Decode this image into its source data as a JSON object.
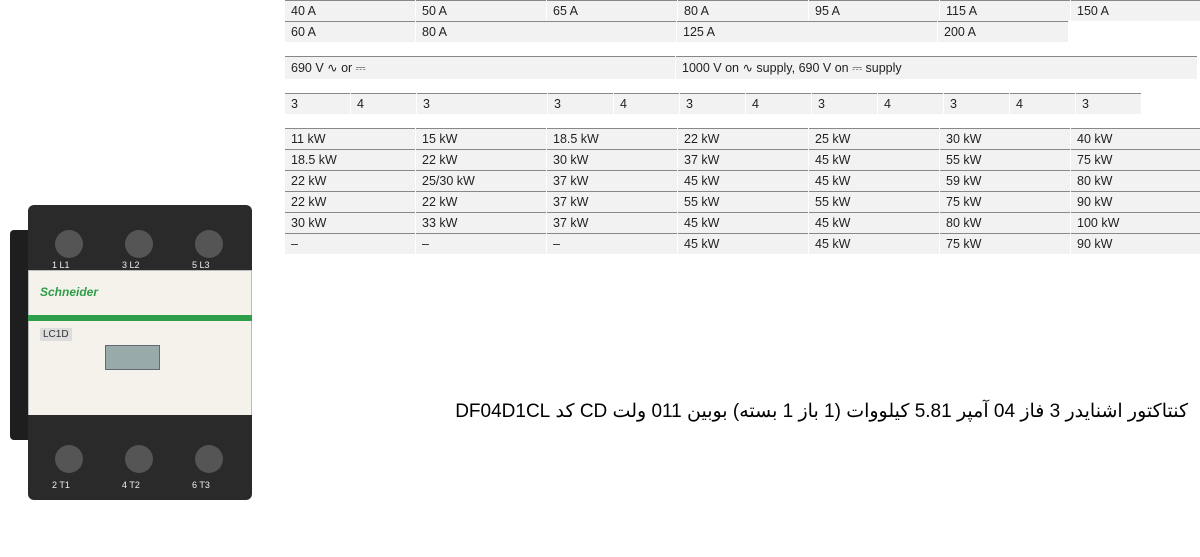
{
  "table": {
    "bg": "#f2f2f2",
    "border": "#888888",
    "text_color": "#222222",
    "fontsize": 12.5,
    "row1": [
      "40 A",
      "50 A",
      "65 A",
      "80 A",
      "95 A",
      "115 A",
      "150 A"
    ],
    "row2": [
      "60 A",
      "80 A",
      "125 A",
      "200 A"
    ],
    "row3_left": "690 V ∿ or ⎓",
    "row3_right": "1000 V on ∿ supply, 690 V on ⎓ supply",
    "row4": [
      "3",
      "4",
      "3",
      "3",
      "4",
      "3",
      "4",
      "3",
      "4",
      "3",
      "4",
      "3"
    ],
    "kw_cols": [
      [
        "11 kW",
        "18.5 kW",
        "22 kW",
        "22 kW",
        "30 kW",
        "–"
      ],
      [
        "15 kW",
        "22 kW",
        "25/30 kW",
        "22 kW",
        "33 kW",
        "–"
      ],
      [
        "18.5 kW",
        "30 kW",
        "37 kW",
        "37 kW",
        "37 kW",
        "–"
      ],
      [
        "22 kW",
        "37 kW",
        "45 kW",
        "55 kW",
        "45 kW",
        "45 kW"
      ],
      [
        "25 kW",
        "45 kW",
        "45 kW",
        "55 kW",
        "45 kW",
        "45 kW"
      ],
      [
        "30 kW",
        "55 kW",
        "59 kW",
        "75 kW",
        "80 kW",
        "75 kW"
      ],
      [
        "40 kW",
        "75 kW",
        "80 kW",
        "90 kW",
        "100 kW",
        "90 kW"
      ]
    ]
  },
  "product": {
    "brand": "Schneider",
    "model": "LC1D",
    "terminals_top": [
      "1 L1",
      "3 L2",
      "5 L3"
    ],
    "terminals_bot": [
      "2 T1",
      "4 T2",
      "6 T3"
    ],
    "body_color_dark": "#2a2a2a",
    "body_color_light": "#f4f2ea",
    "stripe_color": "#2e9e4a"
  },
  "caption": "کنتاکتور اشنایدر 3 فاز 40 آمپر 18.5 کیلووات (1 باز 1 بسته) بوبین 110 ولت DC کد LC1D40FD"
}
